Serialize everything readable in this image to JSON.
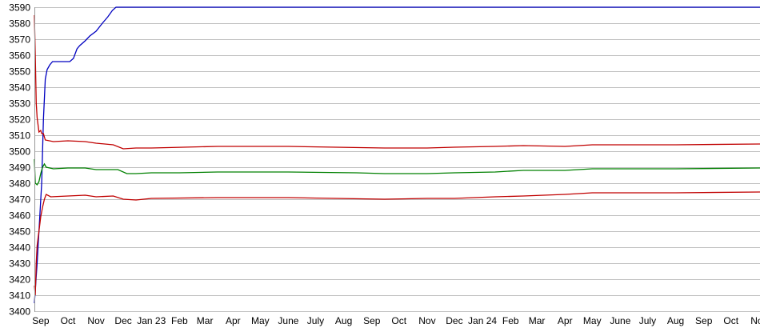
{
  "chart_data": {
    "type": "line",
    "title": "",
    "xlabel": "",
    "ylabel": "",
    "ylim": [
      3400,
      3590
    ],
    "xlim": [
      "2022-08-25",
      "2024-11-02"
    ],
    "grid": {
      "horizontal": true,
      "vertical": false
    },
    "yticks": [
      3400,
      3410,
      3420,
      3430,
      3440,
      3450,
      3460,
      3470,
      3480,
      3490,
      3500,
      3510,
      3520,
      3530,
      3540,
      3550,
      3560,
      3570,
      3580,
      3590
    ],
    "xticks": [
      {
        "label": "Sep",
        "date": "2022-09-01"
      },
      {
        "label": "Oct",
        "date": "2022-10-01"
      },
      {
        "label": "Nov",
        "date": "2022-11-01"
      },
      {
        "label": "Dec",
        "date": "2022-12-01"
      },
      {
        "label": "Jan 23",
        "date": "2023-01-01"
      },
      {
        "label": "Feb",
        "date": "2023-02-01"
      },
      {
        "label": "Mar",
        "date": "2023-03-01"
      },
      {
        "label": "Apr",
        "date": "2023-04-01"
      },
      {
        "label": "May",
        "date": "2023-05-01"
      },
      {
        "label": "June",
        "date": "2023-06-01"
      },
      {
        "label": "July",
        "date": "2023-07-01"
      },
      {
        "label": "Aug",
        "date": "2023-08-01"
      },
      {
        "label": "Sep",
        "date": "2023-09-01"
      },
      {
        "label": "Oct",
        "date": "2023-10-01"
      },
      {
        "label": "Nov",
        "date": "2023-11-01"
      },
      {
        "label": "Dec",
        "date": "2023-12-01"
      },
      {
        "label": "Jan 24",
        "date": "2024-01-01"
      },
      {
        "label": "Feb",
        "date": "2024-02-01"
      },
      {
        "label": "Mar",
        "date": "2024-03-01"
      },
      {
        "label": "Apr",
        "date": "2024-04-01"
      },
      {
        "label": "May",
        "date": "2024-05-01"
      },
      {
        "label": "June",
        "date": "2024-06-01"
      },
      {
        "label": "July",
        "date": "2024-07-01"
      },
      {
        "label": "Aug",
        "date": "2024-08-01"
      },
      {
        "label": "Sep",
        "date": "2024-09-01"
      },
      {
        "label": "Oct",
        "date": "2024-10-01"
      },
      {
        "label": "Nov",
        "date": "2024-11-01"
      }
    ],
    "series": [
      {
        "color": "#0000c0",
        "points": [
          [
            "2022-08-25",
            3405
          ],
          [
            "2022-08-28",
            3430
          ],
          [
            "2022-08-30",
            3450
          ],
          [
            "2022-09-02",
            3480
          ],
          [
            "2022-09-04",
            3520
          ],
          [
            "2022-09-06",
            3545
          ],
          [
            "2022-09-08",
            3551
          ],
          [
            "2022-09-11",
            3554
          ],
          [
            "2022-09-14",
            3556
          ],
          [
            "2022-10-03",
            3556
          ],
          [
            "2022-10-07",
            3558
          ],
          [
            "2022-10-11",
            3564
          ],
          [
            "2022-10-14",
            3566
          ],
          [
            "2022-10-20",
            3569
          ],
          [
            "2022-10-25",
            3572
          ],
          [
            "2022-11-01",
            3575
          ],
          [
            "2022-11-08",
            3580
          ],
          [
            "2022-11-14",
            3584
          ],
          [
            "2022-11-19",
            3588
          ],
          [
            "2022-11-23",
            3590
          ],
          [
            "2024-11-02",
            3590
          ]
        ]
      },
      {
        "color": "#c00000",
        "points": [
          [
            "2022-08-25",
            3585
          ],
          [
            "2022-08-26",
            3560
          ],
          [
            "2022-08-27",
            3530
          ],
          [
            "2022-08-28",
            3521
          ],
          [
            "2022-08-30",
            3512
          ],
          [
            "2022-09-01",
            3513
          ],
          [
            "2022-09-02",
            3511
          ],
          [
            "2022-09-04",
            3511
          ],
          [
            "2022-09-06",
            3507
          ],
          [
            "2022-09-15",
            3506
          ],
          [
            "2022-10-01",
            3506.5
          ],
          [
            "2022-10-20",
            3506
          ],
          [
            "2022-11-01",
            3505
          ],
          [
            "2022-11-20",
            3504
          ],
          [
            "2022-12-01",
            3501.5
          ],
          [
            "2022-12-15",
            3502
          ],
          [
            "2023-01-01",
            3502
          ],
          [
            "2023-03-15",
            3503
          ],
          [
            "2023-06-01",
            3503
          ],
          [
            "2023-09-15",
            3502
          ],
          [
            "2023-11-01",
            3502
          ],
          [
            "2023-12-01",
            3502.5
          ],
          [
            "2024-01-15",
            3503
          ],
          [
            "2024-02-15",
            3503.5
          ],
          [
            "2024-04-01",
            3503
          ],
          [
            "2024-05-01",
            3504
          ],
          [
            "2024-08-01",
            3504
          ],
          [
            "2024-11-02",
            3504.5
          ]
        ]
      },
      {
        "color": "#008000",
        "points": [
          [
            "2022-08-25",
            3495
          ],
          [
            "2022-08-26",
            3480
          ],
          [
            "2022-08-28",
            3479
          ],
          [
            "2022-08-30",
            3481
          ],
          [
            "2022-09-01",
            3486
          ],
          [
            "2022-09-03",
            3490
          ],
          [
            "2022-09-05",
            3492
          ],
          [
            "2022-09-07",
            3490
          ],
          [
            "2022-09-15",
            3489
          ],
          [
            "2022-10-01",
            3489.5
          ],
          [
            "2022-10-20",
            3489.5
          ],
          [
            "2022-11-01",
            3488.5
          ],
          [
            "2022-11-25",
            3488.5
          ],
          [
            "2022-12-05",
            3486
          ],
          [
            "2022-12-15",
            3486
          ],
          [
            "2023-01-01",
            3486.5
          ],
          [
            "2023-02-01",
            3486.5
          ],
          [
            "2023-03-15",
            3487
          ],
          [
            "2023-06-01",
            3487
          ],
          [
            "2023-08-15",
            3486.5
          ],
          [
            "2023-09-15",
            3486
          ],
          [
            "2023-11-01",
            3486
          ],
          [
            "2023-12-01",
            3486.5
          ],
          [
            "2024-01-15",
            3487
          ],
          [
            "2024-02-15",
            3488
          ],
          [
            "2024-04-01",
            3488
          ],
          [
            "2024-05-01",
            3489
          ],
          [
            "2024-08-01",
            3489
          ],
          [
            "2024-11-02",
            3489.5
          ]
        ]
      },
      {
        "color": "#c00000",
        "points": [
          [
            "2022-08-25",
            3416
          ],
          [
            "2022-08-26",
            3410
          ],
          [
            "2022-08-27",
            3430
          ],
          [
            "2022-08-28",
            3441
          ],
          [
            "2022-08-30",
            3450
          ],
          [
            "2022-09-01",
            3459
          ],
          [
            "2022-09-03",
            3465
          ],
          [
            "2022-09-05",
            3470
          ],
          [
            "2022-09-07",
            3473
          ],
          [
            "2022-09-12",
            3471.5
          ],
          [
            "2022-10-01",
            3472
          ],
          [
            "2022-10-20",
            3472.5
          ],
          [
            "2022-11-01",
            3471.5
          ],
          [
            "2022-11-20",
            3472
          ],
          [
            "2022-12-01",
            3470
          ],
          [
            "2022-12-15",
            3469.5
          ],
          [
            "2023-01-01",
            3470.5
          ],
          [
            "2023-03-15",
            3471
          ],
          [
            "2023-06-01",
            3471
          ],
          [
            "2023-09-15",
            3470
          ],
          [
            "2023-11-01",
            3470.5
          ],
          [
            "2023-12-01",
            3470.5
          ],
          [
            "2024-01-15",
            3471.5
          ],
          [
            "2024-02-15",
            3472
          ],
          [
            "2024-04-01",
            3473
          ],
          [
            "2024-05-01",
            3474
          ],
          [
            "2024-08-01",
            3474
          ],
          [
            "2024-11-02",
            3474.5
          ]
        ]
      }
    ]
  }
}
